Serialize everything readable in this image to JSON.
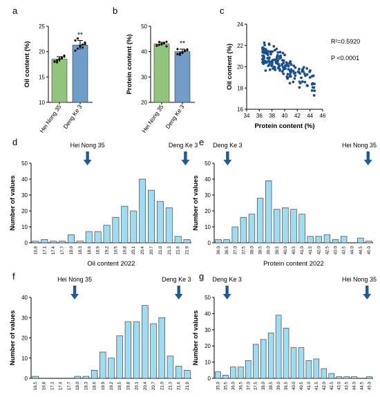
{
  "colors": {
    "green": "#93c47d",
    "blue": "#6f9cc8",
    "scatter": "#1b4f8c",
    "hist": "#9fdcf2",
    "arrow": "#1f5a96"
  },
  "chart_data": [
    {
      "id": "a",
      "panel_letter": "a",
      "type": "bar",
      "categories": [
        "Hei Nong 35",
        "Deng Ke 3"
      ],
      "values": [
        18.5,
        21.3
      ],
      "errors": [
        0.5,
        0.9
      ],
      "points": [
        [
          18.0,
          18.3,
          18.6,
          18.9,
          19.2,
          18.1,
          17.9,
          18.4,
          18.7,
          19.0
        ],
        [
          20.2,
          20.6,
          21.0,
          21.4,
          21.8,
          22.2,
          22.6,
          21.2,
          20.8,
          21.5
        ]
      ],
      "ylabel": "Oil content (%)",
      "ylim": [
        10,
        25
      ],
      "yticks": [
        10,
        15,
        20,
        25
      ],
      "annotation": "**"
    },
    {
      "id": "b",
      "panel_letter": "b",
      "type": "bar",
      "categories": [
        "Hei Nong 35",
        "Deng Ke 3"
      ],
      "values": [
        43.0,
        40.0
      ],
      "errors": [
        0.7,
        1.0
      ],
      "points": [
        [
          42.3,
          42.7,
          43.1,
          43.5,
          43.9,
          42.5,
          43.8,
          42.9,
          43.3,
          42.1
        ],
        [
          39.0,
          39.4,
          39.8,
          40.2,
          40.6,
          41.0,
          38.8,
          39.6,
          40.4,
          40.9
        ]
      ],
      "ylabel": "Protein content (%)",
      "ylim": [
        20,
        50
      ],
      "yticks": [
        20,
        30,
        40,
        50
      ],
      "annotation": "**"
    },
    {
      "id": "c",
      "panel_letter": "c",
      "type": "scatter",
      "xlabel": "Protein content (%)",
      "ylabel": "Oil content (%)",
      "xlim": [
        34,
        46
      ],
      "ylim": [
        16,
        24
      ],
      "xticks": [
        34,
        36,
        38,
        40,
        42,
        44,
        46
      ],
      "yticks": [
        16,
        18,
        20,
        22,
        24
      ],
      "annotations": [
        "R²=0.5920",
        "P <0.0001"
      ],
      "n_points": 180,
      "trend": {
        "x0": 36.5,
        "y0": 21.3,
        "slope": -0.33,
        "xmax": 45,
        "noise": 0.55
      }
    },
    {
      "id": "d",
      "panel_letter": "d",
      "type": "bar",
      "xlabel": "Oil content 2022",
      "ylabel": "Number of values",
      "categories": [
        "16.8",
        "17.1",
        "17.4",
        "17.7",
        "18.0",
        "18.3",
        "18.6",
        "18.9",
        "19.2",
        "19.5",
        "19.8",
        "20.1",
        "20.4",
        "20.7",
        "21.0",
        "21.3",
        "21.6",
        "21.9"
      ],
      "values": [
        1,
        2,
        1,
        1,
        5,
        1,
        7,
        7,
        11,
        16,
        23,
        20,
        40,
        33,
        26,
        22,
        4,
        2
      ],
      "ylim": [
        0,
        50
      ],
      "yticks": [
        0,
        10,
        20,
        30,
        40,
        50
      ],
      "markers": [
        {
          "label": "Hei Nong 35",
          "at": 18.55
        },
        {
          "label": "Deng Ke 3",
          "at": 21.85
        }
      ]
    },
    {
      "id": "e",
      "panel_letter": "e",
      "type": "bar",
      "xlabel": "Protein content 2022",
      "ylabel": "Number of values",
      "categories": [
        "36.0",
        "36.5",
        "37.0",
        "37.5",
        "38.0",
        "38.5",
        "39.0",
        "39.5",
        "40.0",
        "40.5",
        "41.0",
        "41.5",
        "42.0",
        "42.5",
        "43.0",
        "43.5",
        "44.0",
        "44.5",
        "45.0"
      ],
      "values": [
        2,
        2,
        10,
        16,
        18,
        28,
        39,
        21,
        22,
        21,
        18,
        4,
        4,
        5,
        2,
        4,
        0,
        3,
        1
      ],
      "ylim": [
        0,
        50
      ],
      "yticks": [
        0,
        10,
        20,
        30,
        40,
        50
      ],
      "markers": [
        {
          "label": "Deng Ke 3",
          "at": 36.55
        },
        {
          "label": "Hei Nong 35",
          "at": 44.95
        }
      ]
    },
    {
      "id": "f",
      "panel_letter": "f",
      "type": "bar",
      "xlabel": "",
      "ylabel": "Number of values",
      "categories": [
        "16.5",
        "16.8",
        "17.1",
        "17.4",
        "17.7",
        "18.0",
        "18.3",
        "18.6",
        "18.9",
        "19.2",
        "19.5",
        "19.8",
        "20.1",
        "20.4",
        "20.7",
        "21.0",
        "21.3",
        "21.6",
        "21.9"
      ],
      "values": [
        1,
        0,
        0,
        0,
        0,
        1,
        1,
        4,
        13,
        10,
        21,
        28,
        28,
        36,
        27,
        30,
        11,
        6,
        4
      ],
      "ylim": [
        0,
        40
      ],
      "yticks": [
        0,
        10,
        20,
        30,
        40
      ],
      "markers": [
        {
          "label": "Hei Nong 35",
          "at": 17.9
        },
        {
          "label": "Deng Ke 3",
          "at": 21.6
        }
      ]
    },
    {
      "id": "g",
      "panel_letter": "g",
      "type": "bar",
      "xlabel": "",
      "ylabel": "Number of values",
      "categories": [
        "35.0",
        "35.5",
        "36.0",
        "36.5",
        "37.0",
        "37.5",
        "38.0",
        "38.5",
        "39.0",
        "39.5",
        "40.0",
        "40.5",
        "41.0",
        "41.5",
        "42.0",
        "42.5",
        "43.0",
        "43.5",
        "44.0",
        "44.5",
        "45.0"
      ],
      "values": [
        4,
        2,
        7,
        7,
        11,
        21,
        24,
        28,
        39,
        31,
        19,
        19,
        11,
        12,
        6,
        3,
        1,
        1,
        1,
        0,
        1
      ],
      "ylim": [
        0,
        50
      ],
      "yticks": [
        0,
        10,
        20,
        30,
        40,
        50
      ],
      "markers": [
        {
          "label": "Deng Ke 3",
          "at": 35.6
        },
        {
          "label": "Hei Nong 35",
          "at": 44.85
        }
      ]
    }
  ]
}
